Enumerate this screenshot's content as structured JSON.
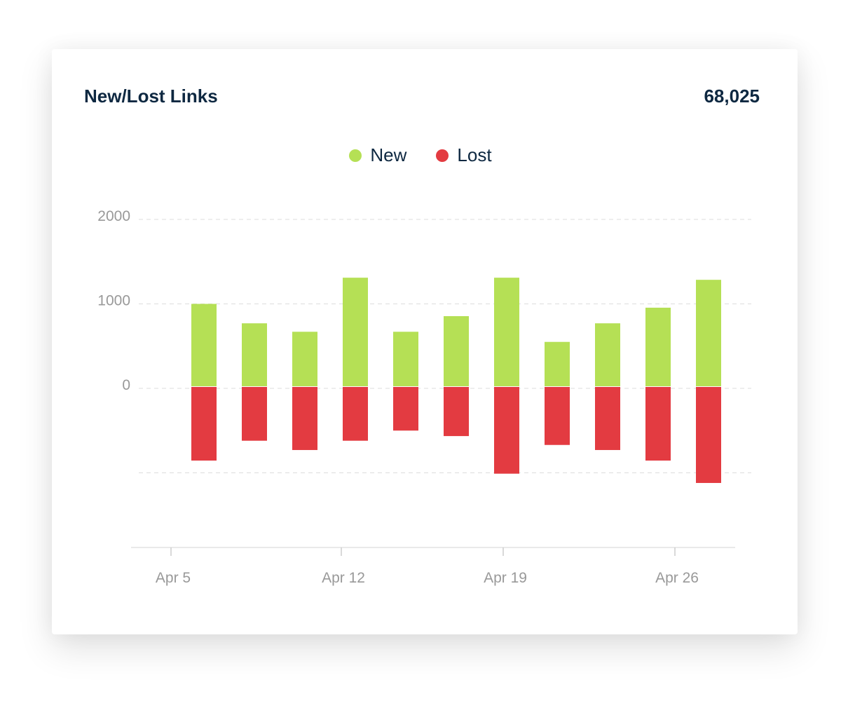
{
  "card": {
    "title": "New/Lost Links",
    "total": "68,025"
  },
  "colors": {
    "new": "#b5e055",
    "lost": "#e33b41",
    "grid": "#dddddd",
    "axis_text": "#999999"
  },
  "chart_data": {
    "type": "bar",
    "stacked": true,
    "legend": {
      "placement": "top-center",
      "entries": [
        "New",
        "Lost"
      ]
    },
    "series": [
      {
        "name": "New",
        "values": [
          1000,
          770,
          670,
          1310,
          670,
          855,
          1310,
          550,
          770,
          955,
          1285
        ]
      },
      {
        "name": "Lost",
        "values": [
          -855,
          -620,
          -730,
          -620,
          -500,
          -565,
          -1010,
          -670,
          -730,
          -855,
          -1120
        ]
      }
    ],
    "y_ticks": [
      {
        "value": 2000,
        "label": "2000"
      },
      {
        "value": 1000,
        "label": "1000"
      },
      {
        "value": 0,
        "label": "0"
      },
      {
        "value": -1000,
        "label": ""
      }
    ],
    "x_ticks": [
      "Apr 5",
      "Apr 12",
      "Apr 19",
      "Apr 26"
    ],
    "ylim": [
      -1900,
      2000
    ],
    "grid": true
  }
}
